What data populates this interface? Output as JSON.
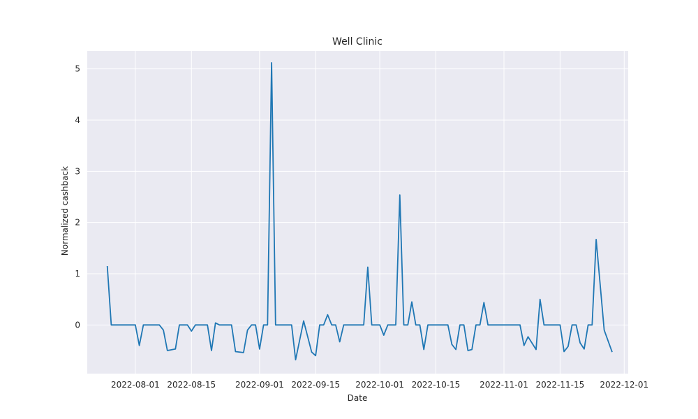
{
  "chart_data": {
    "type": "line",
    "title": "Well Clinic",
    "xlabel": "Date",
    "ylabel": "Normalized cashback",
    "grid": true,
    "style": {
      "background": "#eaeaf2",
      "grid_color": "#ffffff",
      "line_color": "#1f77b4"
    },
    "xlim": [
      "2022-07-20",
      "2022-12-02"
    ],
    "ylim": [
      -0.95,
      5.35
    ],
    "x_ticks": [
      "2022-08-01",
      "2022-08-15",
      "2022-09-01",
      "2022-09-15",
      "2022-10-01",
      "2022-10-15",
      "2022-11-01",
      "2022-11-15",
      "2022-12-01"
    ],
    "y_ticks": [
      0,
      1,
      2,
      3,
      4,
      5
    ],
    "series": [
      {
        "points": [
          [
            "2022-07-25",
            1.15
          ],
          [
            "2022-07-26",
            0.0
          ],
          [
            "2022-08-01",
            0.0
          ],
          [
            "2022-08-02",
            -0.4
          ],
          [
            "2022-08-03",
            0.0
          ],
          [
            "2022-08-07",
            0.0
          ],
          [
            "2022-08-08",
            -0.1
          ],
          [
            "2022-08-09",
            -0.5
          ],
          [
            "2022-08-11",
            -0.47
          ],
          [
            "2022-08-12",
            0.0
          ],
          [
            "2022-08-14",
            0.0
          ],
          [
            "2022-08-15",
            -0.12
          ],
          [
            "2022-08-16",
            0.0
          ],
          [
            "2022-08-19",
            0.0
          ],
          [
            "2022-08-20",
            -0.5
          ],
          [
            "2022-08-21",
            0.04
          ],
          [
            "2022-08-22",
            0.0
          ],
          [
            "2022-08-25",
            0.0
          ],
          [
            "2022-08-26",
            -0.52
          ],
          [
            "2022-08-28",
            -0.54
          ],
          [
            "2022-08-29",
            -0.1
          ],
          [
            "2022-08-30",
            0.0
          ],
          [
            "2022-08-31",
            0.0
          ],
          [
            "2022-09-01",
            -0.47
          ],
          [
            "2022-09-02",
            0.0
          ],
          [
            "2022-09-03",
            0.0
          ],
          [
            "2022-09-04",
            5.12
          ],
          [
            "2022-09-05",
            0.0
          ],
          [
            "2022-09-09",
            0.0
          ],
          [
            "2022-09-10",
            -0.68
          ],
          [
            "2022-09-12",
            0.08
          ],
          [
            "2022-09-14",
            -0.53
          ],
          [
            "2022-09-15",
            -0.6
          ],
          [
            "2022-09-16",
            0.0
          ],
          [
            "2022-09-17",
            0.0
          ],
          [
            "2022-09-18",
            0.2
          ],
          [
            "2022-09-19",
            0.0
          ],
          [
            "2022-09-20",
            0.0
          ],
          [
            "2022-09-21",
            -0.33
          ],
          [
            "2022-09-22",
            0.0
          ],
          [
            "2022-09-27",
            0.0
          ],
          [
            "2022-09-28",
            1.13
          ],
          [
            "2022-09-29",
            0.0
          ],
          [
            "2022-10-01",
            0.0
          ],
          [
            "2022-10-02",
            -0.2
          ],
          [
            "2022-10-03",
            0.0
          ],
          [
            "2022-10-05",
            0.0
          ],
          [
            "2022-10-06",
            2.54
          ],
          [
            "2022-10-07",
            0.0
          ],
          [
            "2022-10-08",
            0.0
          ],
          [
            "2022-10-09",
            0.45
          ],
          [
            "2022-10-10",
            0.0
          ],
          [
            "2022-10-11",
            0.0
          ],
          [
            "2022-10-12",
            -0.48
          ],
          [
            "2022-10-13",
            0.0
          ],
          [
            "2022-10-18",
            0.0
          ],
          [
            "2022-10-19",
            -0.38
          ],
          [
            "2022-10-20",
            -0.48
          ],
          [
            "2022-10-21",
            0.0
          ],
          [
            "2022-10-22",
            0.0
          ],
          [
            "2022-10-23",
            -0.5
          ],
          [
            "2022-10-24",
            -0.48
          ],
          [
            "2022-10-25",
            0.0
          ],
          [
            "2022-10-26",
            0.0
          ],
          [
            "2022-10-27",
            0.44
          ],
          [
            "2022-10-28",
            0.0
          ],
          [
            "2022-11-05",
            0.0
          ],
          [
            "2022-11-06",
            -0.4
          ],
          [
            "2022-11-07",
            -0.23
          ],
          [
            "2022-11-09",
            -0.48
          ],
          [
            "2022-11-10",
            0.5
          ],
          [
            "2022-11-11",
            0.0
          ],
          [
            "2022-11-15",
            0.0
          ],
          [
            "2022-11-16",
            -0.52
          ],
          [
            "2022-11-17",
            -0.42
          ],
          [
            "2022-11-18",
            0.0
          ],
          [
            "2022-11-19",
            0.0
          ],
          [
            "2022-11-20",
            -0.35
          ],
          [
            "2022-11-21",
            -0.47
          ],
          [
            "2022-11-22",
            0.0
          ],
          [
            "2022-11-23",
            0.0
          ],
          [
            "2022-11-24",
            1.67
          ],
          [
            "2022-11-26",
            -0.1
          ],
          [
            "2022-11-28",
            -0.53
          ]
        ]
      }
    ]
  }
}
